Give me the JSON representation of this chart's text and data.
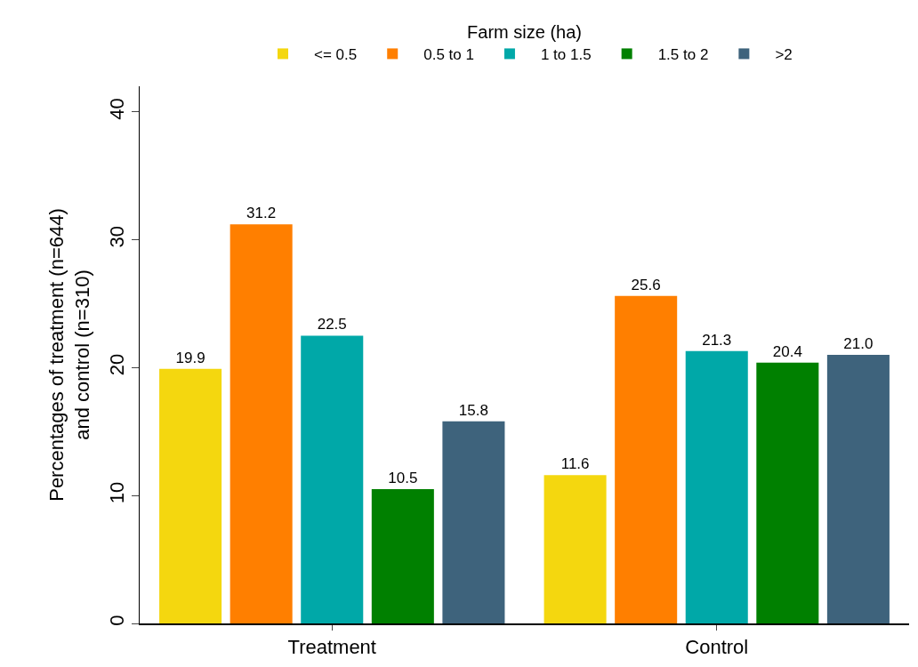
{
  "chart_data": {
    "type": "bar",
    "ylabel": "Percentages of treatment (n=644)\nand control (n=310)",
    "legend_title": "Farm size (ha)",
    "categories": [
      "Treatment",
      "Control"
    ],
    "series": [
      {
        "name": "<= 0.5",
        "color": "#f4d70f",
        "values": [
          19.9,
          11.6
        ],
        "value_labels": [
          "19.9",
          "11.6"
        ]
      },
      {
        "name": "0.5 to 1",
        "color": "#ff7f00",
        "values": [
          31.2,
          25.6
        ],
        "value_labels": [
          "31.2",
          "25.6"
        ]
      },
      {
        "name": "1 to 1.5",
        "color": "#00a8a8",
        "values": [
          22.5,
          21.3
        ],
        "value_labels": [
          "22.5",
          "21.3"
        ]
      },
      {
        "name": "1.5 to 2",
        "color": "#008000",
        "values": [
          10.5,
          20.4
        ],
        "value_labels": [
          "10.5",
          "20.4"
        ]
      },
      {
        "name": ">2",
        "color": "#3e637c",
        "values": [
          15.8,
          21.0
        ],
        "value_labels": [
          "15.8",
          "21.0"
        ]
      }
    ],
    "ylim": [
      0,
      42
    ],
    "yticks": [
      0,
      10,
      20,
      30,
      40
    ],
    "grid": false,
    "legend": "top"
  }
}
